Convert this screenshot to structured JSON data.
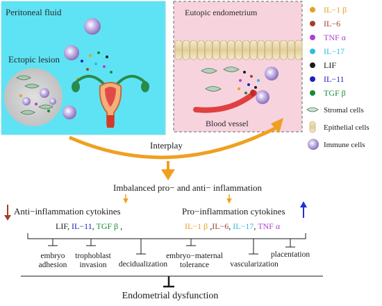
{
  "panels": {
    "left_title": "Peritoneal fluid",
    "lesion_label": "Ectopic lesion",
    "right_title": "Eutopic endometrium",
    "vessel_label": "Blood vessel"
  },
  "legend": {
    "items": [
      {
        "label": "IL−1 β",
        "color": "#e8a020",
        "kind": "dot"
      },
      {
        "label": "IL−6",
        "color": "#a0402a",
        "kind": "dot"
      },
      {
        "label": "TNF α",
        "color": "#b040d0",
        "kind": "dot"
      },
      {
        "label": "IL−17",
        "color": "#30b8e8",
        "kind": "dot"
      },
      {
        "label": "LIF",
        "color": "#1a1a1a",
        "kind": "dot"
      },
      {
        "label": "IL−11",
        "color": "#2020c0",
        "kind": "dot"
      },
      {
        "label": "TGF β",
        "color": "#1a8a3a",
        "kind": "dot"
      },
      {
        "label": "Stromal cells",
        "color": "#7fa88a",
        "kind": "stromal"
      },
      {
        "label": "Epithelial cells",
        "color": "#e8d8a0",
        "kind": "epithelial"
      },
      {
        "label": "Immune cells",
        "color": "#9a80c8",
        "kind": "immune"
      }
    ]
  },
  "flow": {
    "interplay": "Interplay",
    "imbalance": "Imbalanced pro− and anti− inflammation",
    "anti_title": "Anti−inflammation cytokines",
    "pro_title": "Pro−inflammation cytokines",
    "anti_list": [
      {
        "text": "LIF",
        "color": "#1a1a1a"
      },
      {
        "text": ", ",
        "color": "#1a1a1a"
      },
      {
        "text": "IL−11",
        "color": "#2020c0"
      },
      {
        "text": ", ",
        "color": "#1a1a1a"
      },
      {
        "text": "TGF β",
        "color": "#1a8a3a"
      },
      {
        "text": " ,",
        "color": "#1a1a1a"
      }
    ],
    "pro_list": [
      {
        "text": "IL−1 β",
        "color": "#e8a020"
      },
      {
        "text": " ,",
        "color": "#1a1a1a"
      },
      {
        "text": "IL−6",
        "color": "#a0402a"
      },
      {
        "text": ", ",
        "color": "#1a1a1a"
      },
      {
        "text": "IL−17",
        "color": "#30b8e8"
      },
      {
        "text": ", ",
        "color": "#1a1a1a"
      },
      {
        "text": "TNF α",
        "color": "#b040d0"
      }
    ],
    "outcomes": {
      "embryo_adhesion": [
        "embryo",
        "adhesion"
      ],
      "trophoblast_invasion": [
        "trophoblast",
        "invasion"
      ],
      "decidualization": "decidualization",
      "tolerance": [
        "embryo−maternal",
        "tolerance"
      ],
      "vascularization": "vascularization",
      "placentation": "placentation"
    },
    "result": "Endometrial dysfunction"
  },
  "colors": {
    "left_panel": "#5ee3f4",
    "right_panel": "#f7d3de",
    "arrow_orange": "#f0a020",
    "arrow_down": "#a0402a",
    "arrow_up": "#2030d0"
  }
}
